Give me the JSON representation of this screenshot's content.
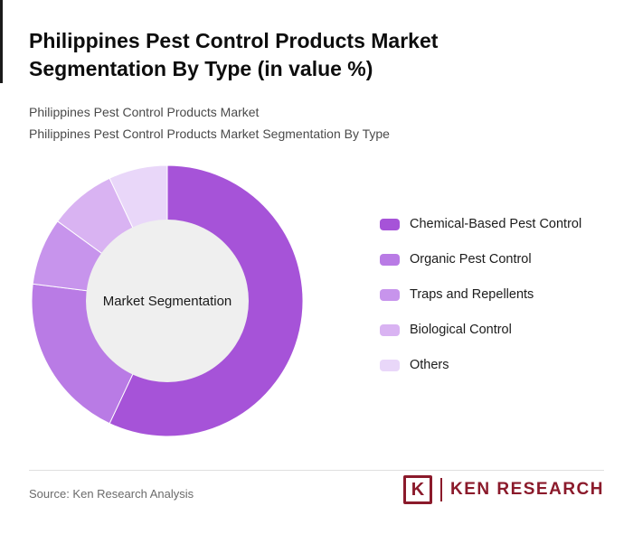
{
  "header": {
    "title": "Philippines Pest Control Products Market Segmentation By Type (in value %)",
    "subtitle_line1": "Philippines Pest Control Products Market",
    "subtitle_line2": "Philippines Pest Control Products Market Segmentation By Type"
  },
  "chart_data": {
    "type": "pie",
    "subtype": "donut",
    "title": "Philippines Pest Control Products Market Segmentation By Type (in value %)",
    "center_label": "Market Segmentation",
    "categories": [
      "Chemical-Based Pest Control",
      "Organic Pest Control",
      "Traps and Repellents",
      "Biological Control",
      "Others"
    ],
    "values": [
      57,
      20,
      8,
      8,
      7
    ],
    "unit": "value %",
    "values_estimated_from_arcs": true,
    "colors": [
      "#A653D8",
      "#B97BE5",
      "#C794EC",
      "#D9B3F2",
      "#E9D7F9"
    ],
    "inner_circle_color": "#EFEFEF",
    "legend_position": "right",
    "data_labels_shown": false
  },
  "footer": {
    "source_text": "Source: Ken Research Analysis",
    "logo": {
      "letter": "K",
      "text": "KEN RESEARCH",
      "color": "#8B1A2B"
    }
  }
}
